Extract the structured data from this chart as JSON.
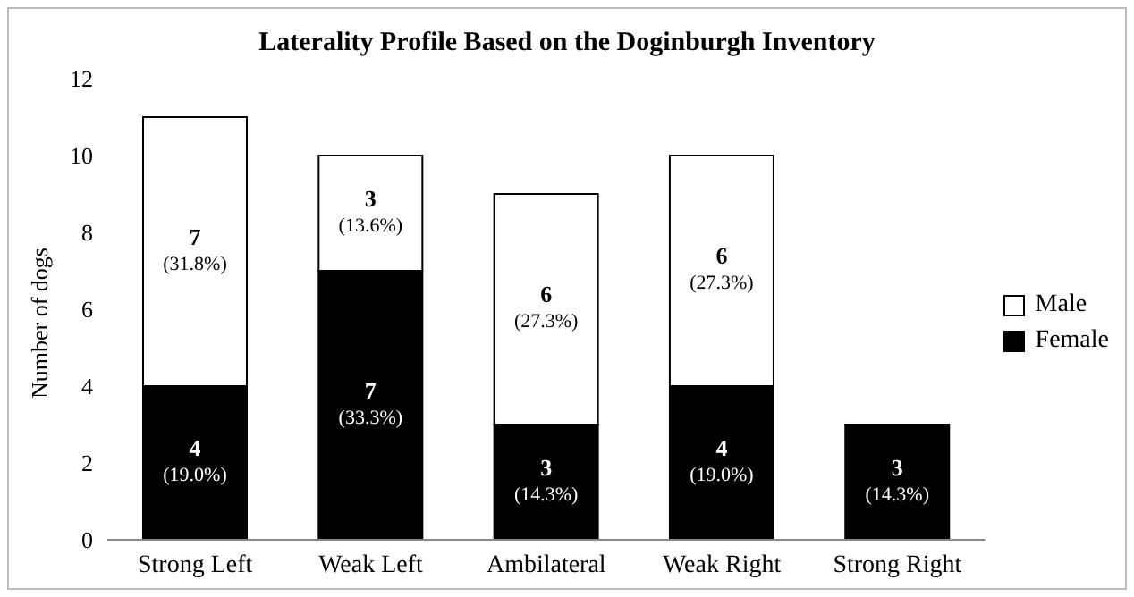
{
  "chart_data": {
    "type": "bar",
    "title": "Laterality Profile Based on the Doginburgh Inventory",
    "ylabel": "Number of dogs",
    "categories": [
      "Strong Left",
      "Weak Left",
      "Ambilateral",
      "Weak Right",
      "Strong Right"
    ],
    "stacked": true,
    "series": [
      {
        "name": "Female",
        "color": "#000000",
        "values": [
          4,
          7,
          3,
          4,
          3
        ],
        "value_labels": [
          "4 (19.0%)",
          "7 (33.3%)",
          "3 (14.3%)",
          "4 (19.0%)",
          "3 (14.3%)"
        ]
      },
      {
        "name": "Male",
        "color": "#ffffff",
        "values": [
          7,
          3,
          6,
          6,
          0
        ],
        "value_labels": [
          "7 (31.8%)",
          "3 (13.6%)",
          "6 (27.3%)",
          "6 (27.3%)",
          null
        ]
      }
    ],
    "ylim": [
      0,
      12
    ],
    "yticks": [
      0,
      2,
      4,
      6,
      8,
      10,
      12
    ],
    "grid": false,
    "legend": "right"
  }
}
